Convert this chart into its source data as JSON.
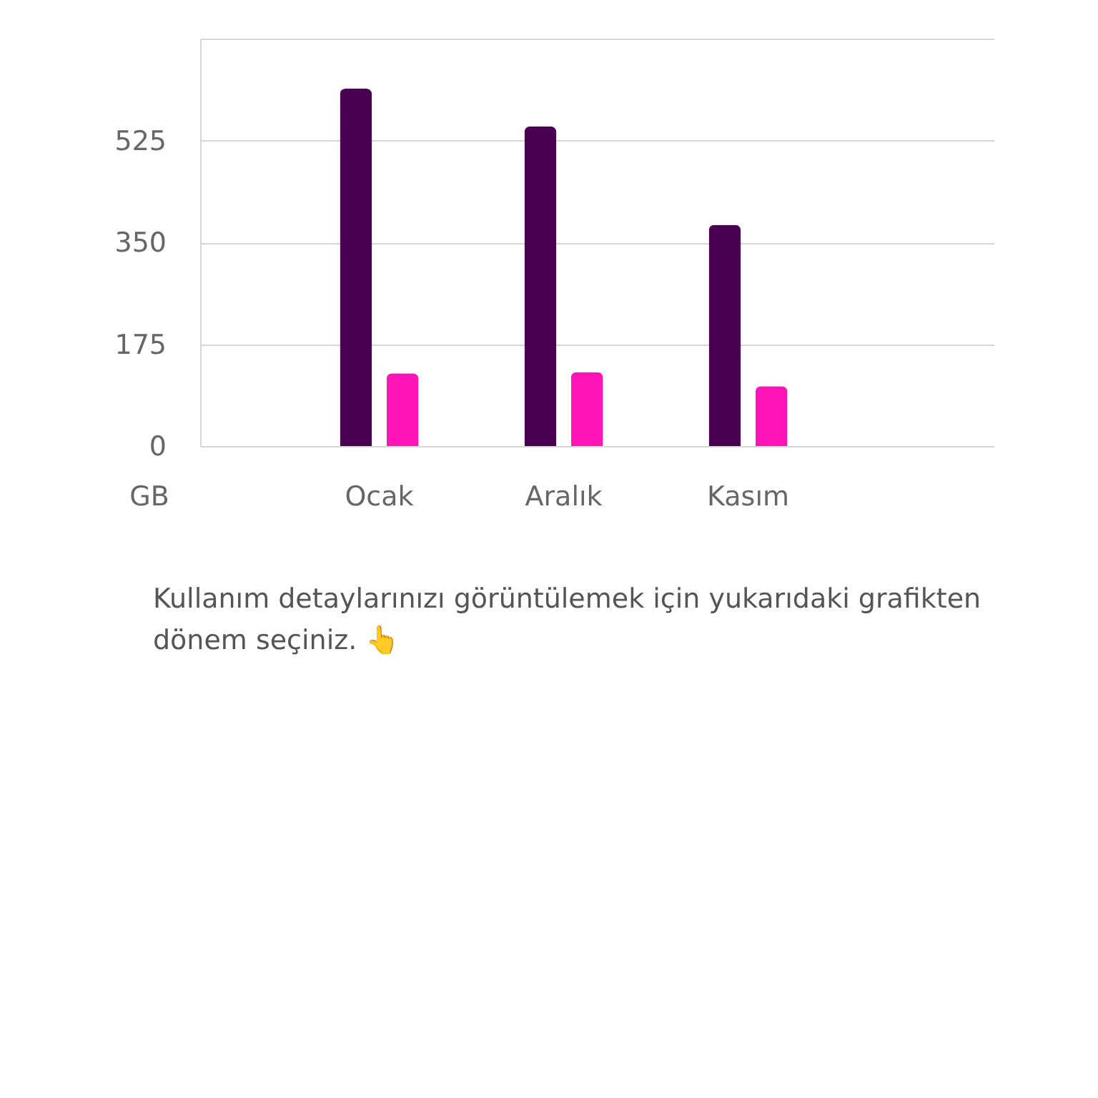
{
  "chart_data": {
    "type": "bar",
    "categories": [
      "Ocak",
      "Aralık",
      "Kasım"
    ],
    "series": [
      {
        "color": "#4a0050",
        "values": [
          614,
          549,
          380
        ]
      },
      {
        "color": "#ff14b8",
        "values": [
          125,
          127,
          103
        ]
      }
    ],
    "ylabel": "GB",
    "ylim": [
      0,
      700
    ],
    "yticks": [
      0,
      175,
      350,
      525,
      {
        "value": 700,
        "label": null
      }
    ],
    "grid": "y",
    "legend": false,
    "annotations": [
      "Kullanım detaylarınızı görüntülemek için yukarıdaki grafikten dönem seçiniz. 👆"
    ]
  }
}
